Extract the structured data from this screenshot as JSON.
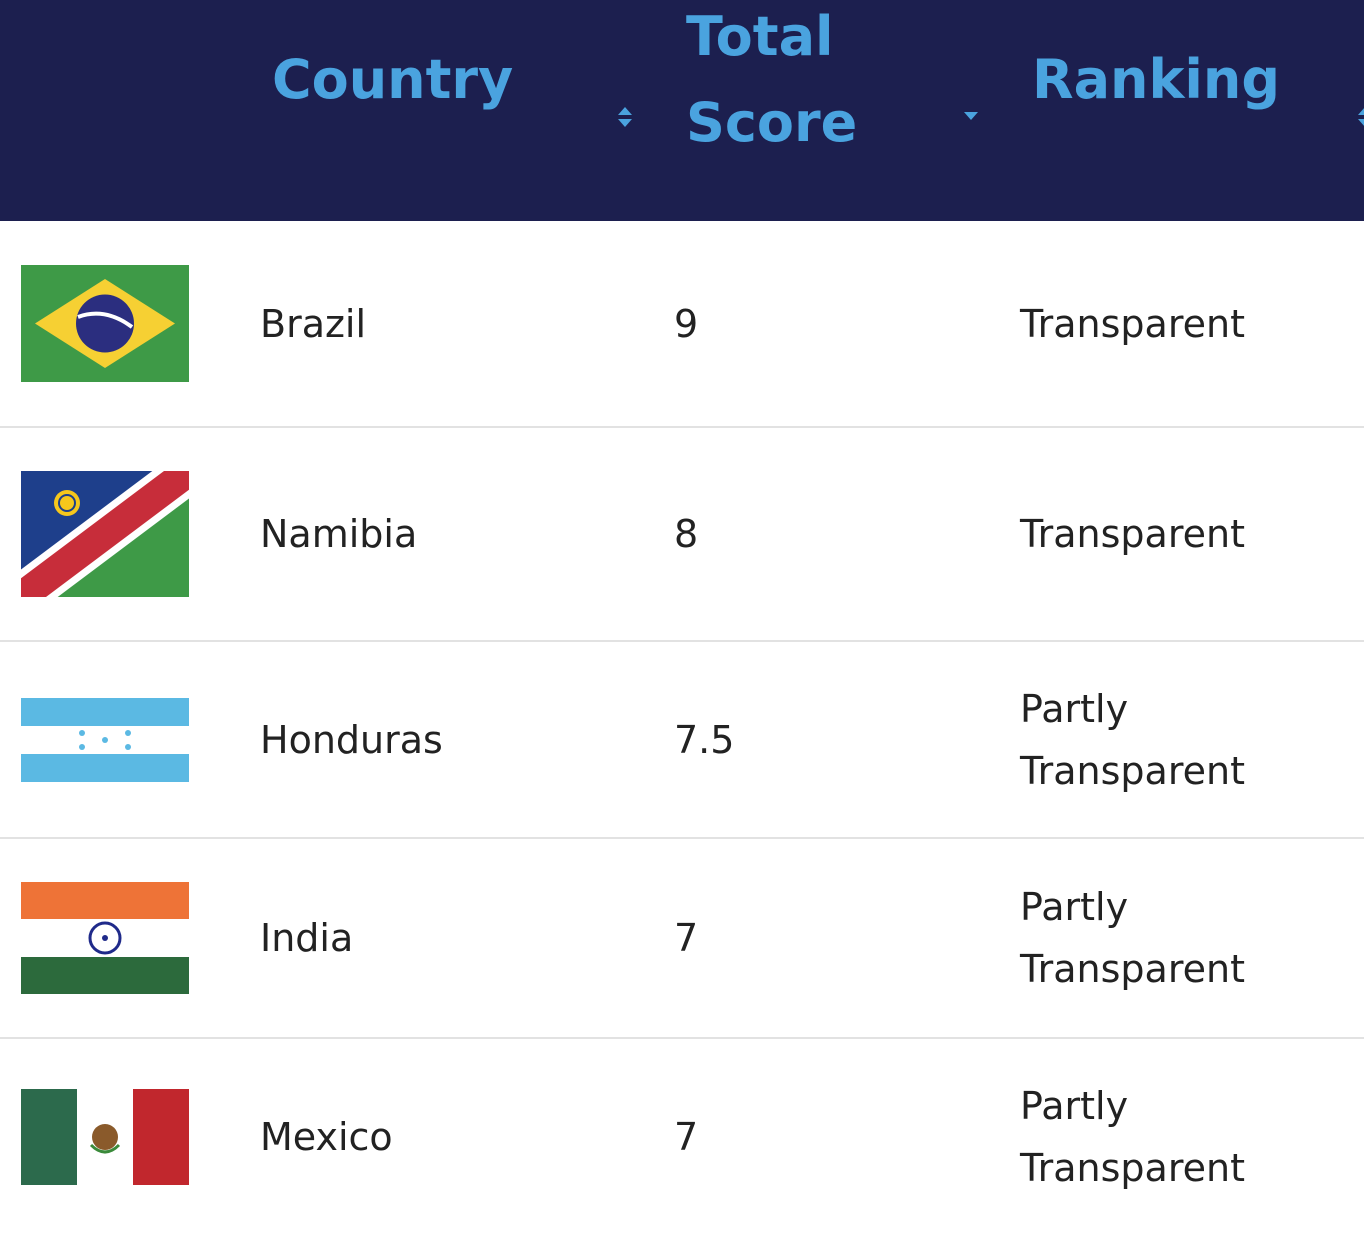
{
  "table": {
    "headers": [
      "Country",
      "Total Score",
      "Ranking"
    ],
    "rows": [
      [
        "Brazil",
        "9",
        "Transparent"
      ],
      [
        "Namibia",
        "8",
        "Transparent"
      ],
      [
        "Honduras",
        "7.5",
        "Partly Transparent"
      ],
      [
        "India",
        "7",
        "Partly Transparent"
      ],
      [
        "Mexico",
        "7",
        "Partly Transparent"
      ]
    ]
  }
}
